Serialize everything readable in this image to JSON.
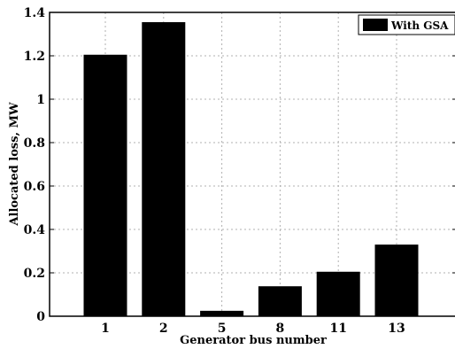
{
  "chart_data": {
    "type": "bar",
    "categories": [
      "1",
      "2",
      "5",
      "8",
      "11",
      "13"
    ],
    "series": [
      {
        "name": "With GSA",
        "values": [
          1.205,
          1.355,
          0.025,
          0.138,
          0.205,
          0.33
        ]
      }
    ],
    "xlabel": "Generator bus number",
    "ylabel": "Allocated loss, MW",
    "ylim": [
      0,
      1.4
    ],
    "yticks": [
      "0",
      "0.2",
      "0.4",
      "0.6",
      "0.8",
      "1",
      "1.2",
      "1.4"
    ],
    "grid": true,
    "legend_position": "top-right",
    "bar_color": "#000000",
    "grid_color": "#b0b0b0"
  }
}
